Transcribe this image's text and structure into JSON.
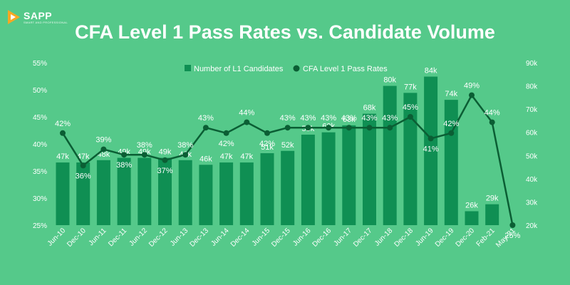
{
  "brand": {
    "name": "SAPP",
    "tagline": "SMART AND PROFESSIONAL"
  },
  "colors": {
    "background": "#55c98a",
    "bar": "#0f8f53",
    "line": "#0b5e34",
    "logo_orange": "#f7a823",
    "text": "#ffffff"
  },
  "chart_data": {
    "type": "bar",
    "title": "CFA Level 1 Pass Rates vs. Candidate Volume",
    "categories": [
      "Jun-10",
      "Dec-10",
      "Jun-11",
      "Dec-11",
      "Jun-12",
      "Dec-12",
      "Jun-13",
      "Dec-13",
      "Jun-14",
      "Dec-14",
      "Jun-15",
      "Dec-15",
      "Jun-16",
      "Dec-16",
      "Jun-17",
      "Dec-17",
      "Jun-18",
      "Dec-18",
      "Jun-19",
      "Dec-19",
      "Dec-20",
      "Feb-21",
      "May-21"
    ],
    "series": [
      {
        "name": "Number of L1 Candidates",
        "type": "bar",
        "axis": "right",
        "values": [
          47,
          47,
          48,
          49,
          49,
          49,
          48,
          46,
          47,
          47,
          51,
          52,
          59,
          60,
          63,
          68,
          80,
          77,
          84,
          74,
          26,
          29,
          null
        ],
        "labels": [
          "47k",
          "47k",
          "48k",
          "49k",
          "49k",
          "49k",
          "48k",
          "46k",
          "47k",
          "47k",
          "51k",
          "52k",
          "59k",
          "60k",
          "63k",
          "68k",
          "80k",
          "77k",
          "84k",
          "74k",
          "26k",
          "29k",
          ""
        ]
      },
      {
        "name": "CFA Level 1 Pass Rates",
        "type": "line",
        "axis": "left",
        "values": [
          42,
          36,
          39,
          38,
          38,
          37,
          38,
          43,
          42,
          44,
          42,
          43,
          43,
          43,
          43,
          43,
          43,
          45,
          41,
          42,
          49,
          44,
          25
        ],
        "labels": [
          "42%",
          "36%",
          "39%",
          "38%",
          "38%",
          "37%",
          "38%",
          "43%",
          "42%",
          "44%",
          "42%",
          "43%",
          "43%",
          "43%",
          "43%",
          "43%",
          "43%",
          "45%",
          "41%",
          "42%",
          "49%",
          "44%",
          "25%"
        ]
      }
    ],
    "y_left": {
      "ticks": [
        "25%",
        "30%",
        "35%",
        "40%",
        "45%",
        "50%",
        "55%"
      ],
      "range": [
        25,
        55
      ]
    },
    "y_right": {
      "ticks": [
        "20k",
        "30k",
        "40k",
        "50k",
        "60k",
        "70k",
        "80k",
        "90k"
      ],
      "range": [
        20,
        90
      ]
    },
    "legend_position": "top-center",
    "grid": false
  }
}
